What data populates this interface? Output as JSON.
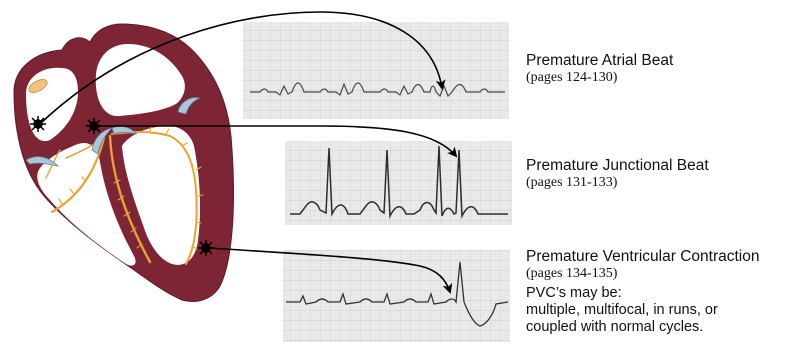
{
  "beats": [
    {
      "title": "Premature Atrial Beat",
      "pages": "(pages 124-130)"
    },
    {
      "title": "Premature Junctional Beat",
      "pages": "(pages 131-133)"
    },
    {
      "title": "Premature Ventricular Contraction",
      "pages": "(pages 134-135)"
    }
  ],
  "pvc_note": {
    "heading": "PVC’s may be:",
    "line1": "multiple, multifocal, in runs, or",
    "line2": "coupled with normal cycles."
  },
  "colors": {
    "heart_wall": "#7d2435",
    "conduction": "#e8a330",
    "valve": "#a9c7dc",
    "sa_node": "#f1c27a",
    "ecg_paper": "#e9e9e9",
    "ecg_grid": "#c9c9c9",
    "ecg_trace": "#333333"
  }
}
